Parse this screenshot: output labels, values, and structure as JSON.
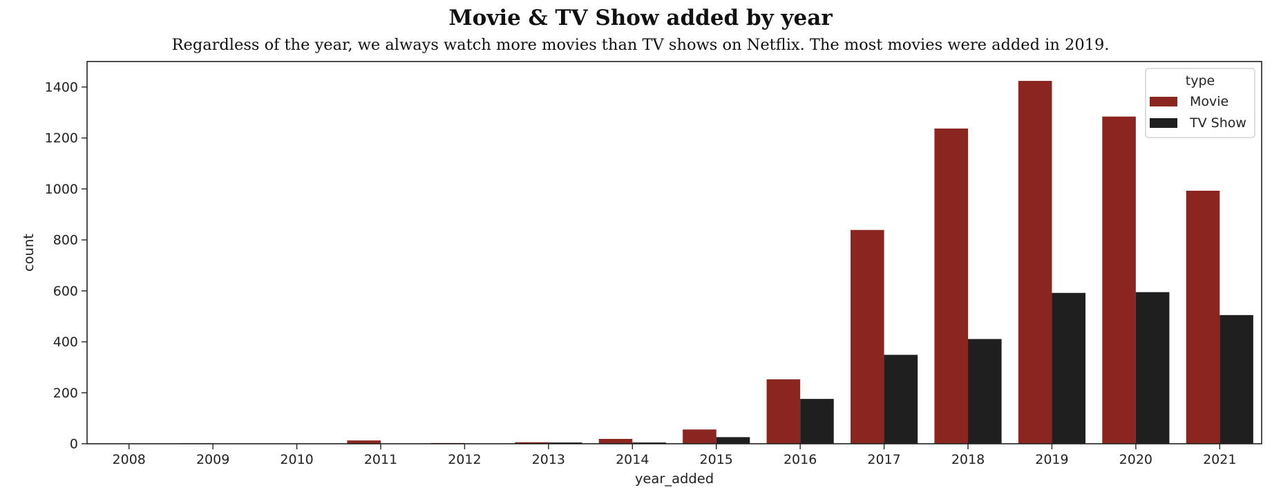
{
  "chart_data": {
    "type": "bar",
    "title": "Movie & TV Show added by year",
    "subtitle": "Regardless of the year, we always watch more movies than TV shows on Netflix. The most movies were added in 2019.",
    "xlabel": "year_added",
    "ylabel": "count",
    "categories": [
      "2008",
      "2009",
      "2010",
      "2011",
      "2012",
      "2013",
      "2014",
      "2015",
      "2016",
      "2017",
      "2018",
      "2019",
      "2020",
      "2021"
    ],
    "ylim": [
      0,
      1500
    ],
    "yticks": [
      0,
      200,
      400,
      600,
      800,
      1000,
      1200,
      1400
    ],
    "grid": false,
    "legend": {
      "title": "type",
      "placement": "top-right"
    },
    "series": [
      {
        "name": "Movie",
        "color": "#8b2520",
        "values": [
          1,
          2,
          1,
          13,
          3,
          6,
          19,
          56,
          253,
          839,
          1237,
          1424,
          1284,
          993
        ]
      },
      {
        "name": "TV Show",
        "color": "#1f1f1f",
        "values": [
          0,
          0,
          0,
          0,
          0,
          5,
          5,
          26,
          176,
          349,
          411,
          592,
          595,
          505
        ]
      }
    ]
  }
}
